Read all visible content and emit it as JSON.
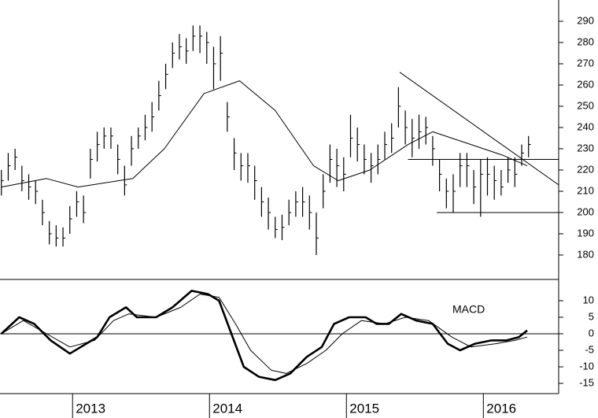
{
  "chart_data": [
    {
      "type": "ohlc",
      "color": "#000000",
      "xlim": [
        2012.47,
        2016.55
      ],
      "ylim": [
        168.5,
        300
      ],
      "yticks": [
        180,
        190,
        200,
        210,
        220,
        230,
        240,
        250,
        260,
        270,
        280,
        290
      ],
      "x": [
        2012.48,
        2012.53,
        2012.58,
        2012.63,
        2012.68,
        2012.73,
        2012.78,
        2012.83,
        2012.88,
        2012.93,
        2012.98,
        2013.03,
        2013.08,
        2013.13,
        2013.18,
        2013.23,
        2013.28,
        2013.33,
        2013.38,
        2013.43,
        2013.48,
        2013.53,
        2013.58,
        2013.63,
        2013.68,
        2013.73,
        2013.78,
        2013.83,
        2013.88,
        2013.93,
        2013.98,
        2014.03,
        2014.08,
        2014.13,
        2014.18,
        2014.23,
        2014.28,
        2014.33,
        2014.38,
        2014.43,
        2014.48,
        2014.53,
        2014.58,
        2014.63,
        2014.68,
        2014.73,
        2014.78,
        2014.83,
        2014.88,
        2014.93,
        2014.98,
        2015.03,
        2015.08,
        2015.13,
        2015.18,
        2015.23,
        2015.28,
        2015.33,
        2015.38,
        2015.43,
        2015.48,
        2015.53,
        2015.58,
        2015.63,
        2015.68,
        2015.73,
        2015.78,
        2015.83,
        2015.88,
        2015.93,
        2015.98,
        2016.03,
        2016.08,
        2016.13,
        2016.18,
        2016.23,
        2016.28,
        2016.33
      ],
      "high": [
        220,
        228,
        230,
        222,
        218,
        215,
        206,
        196,
        194,
        193,
        203,
        210,
        208,
        230,
        238,
        240,
        240,
        232,
        222,
        236,
        240,
        246,
        252,
        262,
        270,
        280,
        284,
        282,
        288,
        288,
        285,
        278,
        283,
        252,
        235,
        228,
        228,
        222,
        212,
        207,
        198,
        199,
        206,
        210,
        212,
        208,
        200,
        218,
        232,
        230,
        226,
        246,
        240,
        232,
        228,
        232,
        238,
        242,
        259,
        248,
        244,
        246,
        245,
        236,
        225,
        216,
        218,
        228,
        228,
        220,
        225,
        226,
        222,
        220,
        226,
        226,
        232,
        236
      ],
      "low": [
        208,
        215,
        220,
        210,
        206,
        204,
        194,
        185,
        184,
        184,
        190,
        198,
        195,
        216,
        224,
        230,
        230,
        218,
        208,
        222,
        230,
        234,
        238,
        248,
        258,
        268,
        272,
        270,
        276,
        275,
        270,
        258,
        262,
        238,
        220,
        215,
        214,
        206,
        198,
        192,
        188,
        187,
        194,
        198,
        198,
        192,
        180,
        202,
        214,
        212,
        210,
        226,
        224,
        218,
        214,
        218,
        225,
        228,
        240,
        232,
        226,
        230,
        232,
        222,
        210,
        202,
        200,
        212,
        212,
        204,
        198,
        208,
        206,
        208,
        214,
        212,
        222,
        226
      ],
      "close": [
        215,
        222,
        226,
        215,
        212,
        210,
        200,
        190,
        188,
        188,
        197,
        205,
        200,
        225,
        232,
        236,
        236,
        225,
        213,
        230,
        236,
        240,
        245,
        255,
        265,
        275,
        278,
        276,
        283,
        283,
        280,
        270,
        275,
        245,
        228,
        222,
        222,
        215,
        205,
        200,
        192,
        193,
        200,
        205,
        205,
        200,
        188,
        210,
        225,
        222,
        218,
        235,
        232,
        225,
        222,
        225,
        232,
        235,
        250,
        240,
        235,
        238,
        240,
        230,
        218,
        210,
        210,
        222,
        222,
        212,
        218,
        218,
        215,
        212,
        220,
        218,
        228,
        232
      ],
      "overlay": {
        "x": [
          2012.48,
          2012.81,
          2013.04,
          2013.44,
          2013.67,
          2013.96,
          2014.22,
          2014.48,
          2014.76,
          2014.94,
          2015.17,
          2015.45,
          2015.63,
          2015.91,
          2016.14,
          2016.32
        ],
        "values": [
          212,
          216,
          212,
          216,
          230,
          256,
          262,
          248,
          222,
          215,
          220,
          232,
          238,
          232,
          227,
          222
        ]
      },
      "lines": [
        {
          "x": [
            2015.39,
            2016.55
          ],
          "values": [
            266,
            213
          ]
        },
        {
          "x": [
            2015.45,
            2016.55
          ],
          "values": [
            225,
            225
          ]
        },
        {
          "x": [
            2015.66,
            2016.55
          ],
          "values": [
            200,
            200
          ]
        }
      ]
    },
    {
      "type": "line",
      "annotation": "MACD",
      "xlim": [
        2012.47,
        2016.55
      ],
      "ylim": [
        -18.1,
        16.43
      ],
      "yticks": [
        -15,
        -10,
        -5,
        0,
        5,
        10
      ],
      "xticks": [
        2013,
        2014,
        2015,
        2016
      ],
      "series": [
        {
          "width": 2.6,
          "x": [
            2012.48,
            2012.61,
            2012.72,
            2012.84,
            2012.98,
            2013.1,
            2013.18,
            2013.27,
            2013.39,
            2013.47,
            2013.61,
            2013.73,
            2013.87,
            2013.99,
            2014.07,
            2014.16,
            2014.25,
            2014.36,
            2014.48,
            2014.59,
            2014.71,
            2014.82,
            2014.91,
            2015.02,
            2015.14,
            2015.22,
            2015.31,
            2015.4,
            2015.51,
            2015.63,
            2015.74,
            2015.83,
            2015.94,
            2016.06,
            2016.17,
            2016.26,
            2016.32
          ],
          "values": [
            0,
            5,
            3,
            -2,
            -6,
            -3,
            -1,
            5,
            8,
            5,
            5,
            8,
            13,
            12,
            10,
            0,
            -10,
            -13,
            -14,
            -12,
            -7,
            -4,
            3,
            5,
            5,
            3,
            3,
            6,
            4,
            3,
            -3,
            -5,
            -3,
            -2,
            -2,
            -1,
            1
          ]
        },
        {
          "width": 1,
          "x": [
            2012.48,
            2012.64,
            2012.81,
            2012.98,
            2013.16,
            2013.3,
            2013.41,
            2013.61,
            2013.79,
            2013.93,
            2014.07,
            2014.19,
            2014.3,
            2014.45,
            2014.56,
            2014.71,
            2014.85,
            2014.97,
            2015.11,
            2015.28,
            2015.43,
            2015.6,
            2015.77,
            2015.91,
            2016.09,
            2016.23,
            2016.32
          ],
          "values": [
            0,
            4,
            0,
            -4,
            -2,
            4,
            6,
            5,
            8,
            12,
            11,
            3,
            -5,
            -11,
            -12,
            -9,
            -5,
            0,
            4,
            3,
            5,
            4,
            -1,
            -4,
            -3,
            -2,
            -1
          ]
        }
      ]
    }
  ]
}
